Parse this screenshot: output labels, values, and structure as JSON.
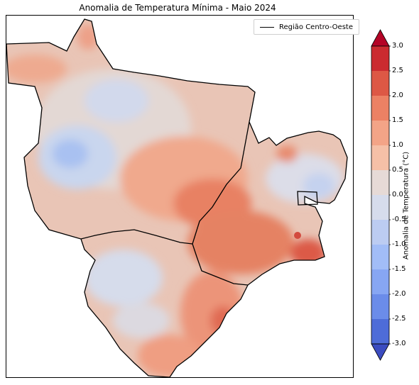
{
  "title": "Anomalia de Temperatura Mínima - Maio 2024",
  "legend": {
    "label": "Região Centro-Oeste"
  },
  "colorbar": {
    "label": "Anomalia de Temperatura (°C)",
    "ticks": [
      "3.0",
      "2.5",
      "2.0",
      "1.5",
      "1.0",
      "0.5",
      "0.0",
      "-0.5",
      "-1.0",
      "-1.5",
      "-2.0",
      "-2.5",
      "-3.0"
    ],
    "colors": [
      "#cb2b30",
      "#dd5845",
      "#ec8164",
      "#f3a487",
      "#f5c0a7",
      "#e6dad6",
      "#d6dcec",
      "#bcccf2",
      "#a2bdf7",
      "#87a6f3",
      "#6b8ce9",
      "#4e6cd8"
    ],
    "over_color": "#b40426",
    "under_color": "#3b4cc0"
  },
  "chart_data": {
    "type": "heatmap",
    "variable": "Anomalia de Temperatura Mínima",
    "units": "°C",
    "range": [
      -3.0,
      3.0
    ],
    "levels": [
      -3.0,
      -2.5,
      -2.0,
      -1.5,
      -1.0,
      -0.5,
      0.0,
      0.5,
      1.0,
      1.5,
      2.0,
      2.5,
      3.0
    ],
    "colormap": "coolwarm"
  }
}
